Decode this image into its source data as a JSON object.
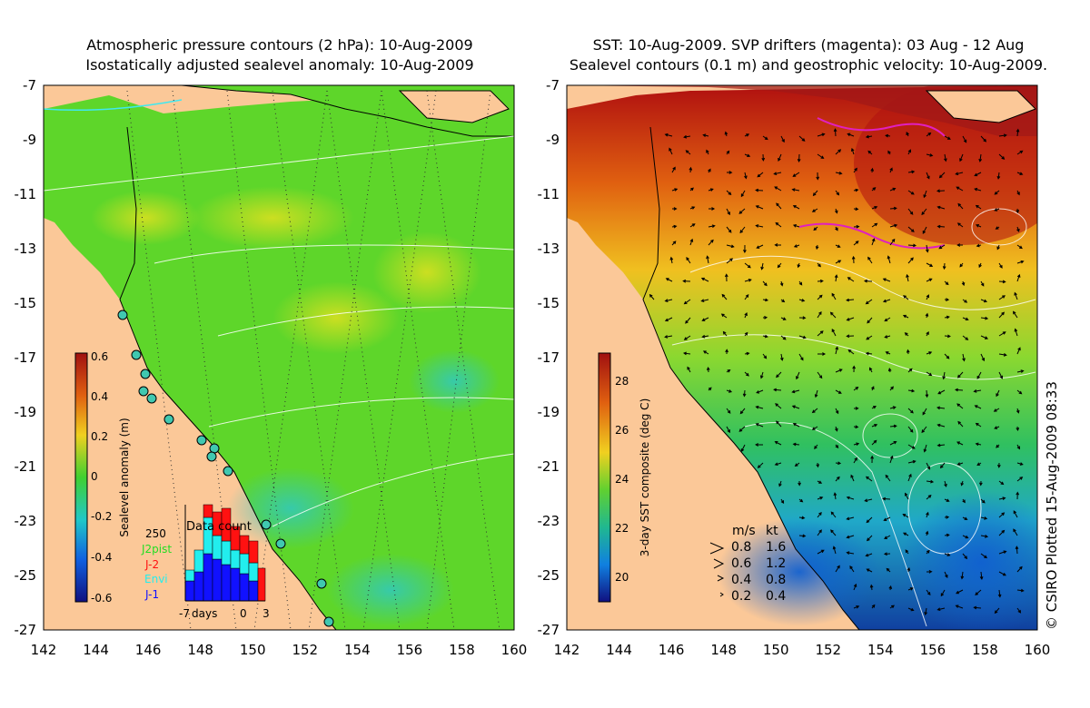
{
  "left_panel": {
    "title_line1": "Atmospheric pressure contours (2 hPa): 10-Aug-2009",
    "title_line2": "Isostatically adjusted sealevel anomaly: 10-Aug-2009",
    "colorbar": {
      "label": "Sealevel anomaly (m)",
      "ticks": [
        "0.6",
        "0.4",
        "0.2",
        "0",
        "-0.2",
        "-0.4",
        "-0.6"
      ]
    },
    "data_count": {
      "title": "Data count",
      "ymax_label": "250",
      "legend": [
        {
          "label": "J2pist",
          "color": "#22dd22"
        },
        {
          "label": "J-2",
          "color": "#ff1111"
        },
        {
          "label": "Envi",
          "color": "#22eeee"
        },
        {
          "label": "J-1",
          "color": "#1111ff"
        }
      ],
      "xticks": [
        "-7",
        "days",
        "0",
        "3"
      ]
    }
  },
  "right_panel": {
    "title_line1": "SST: 10-Aug-2009. SVP drifters (magenta): 03 Aug - 12 Aug",
    "title_line2": "Sealevel contours (0.1 m) and geostrophic velocity: 10-Aug-2009.",
    "colorbar": {
      "label": "3-day SST composite (deg C)",
      "ticks": [
        "28",
        "26",
        "24",
        "22",
        "20"
      ]
    },
    "velocity_legend": {
      "header_ms": "m/s",
      "header_kt": "kt",
      "rows": [
        {
          "ms": "0.8",
          "kt": "1.6"
        },
        {
          "ms": "0.6",
          "kt": "1.2"
        },
        {
          "ms": "0.4",
          "kt": "0.8"
        },
        {
          "ms": "0.2",
          "kt": "0.4"
        }
      ]
    }
  },
  "axes": {
    "y_ticks": [
      "-7",
      "-9",
      "-11",
      "-13",
      "-15",
      "-17",
      "-19",
      "-21",
      "-23",
      "-25",
      "-27"
    ],
    "x_ticks": [
      "142",
      "144",
      "146",
      "148",
      "150",
      "152",
      "154",
      "156",
      "158",
      "160"
    ]
  },
  "credit": "© CSIRO Plotted 15-Aug-2009 08:33",
  "colors": {
    "land": "#fbc898",
    "ocean_green": "#5ed62a",
    "sst_warm": "#e06010",
    "sst_cool": "#2a9ad8",
    "drifter": "#e020c0",
    "contour": "#ffffff"
  }
}
